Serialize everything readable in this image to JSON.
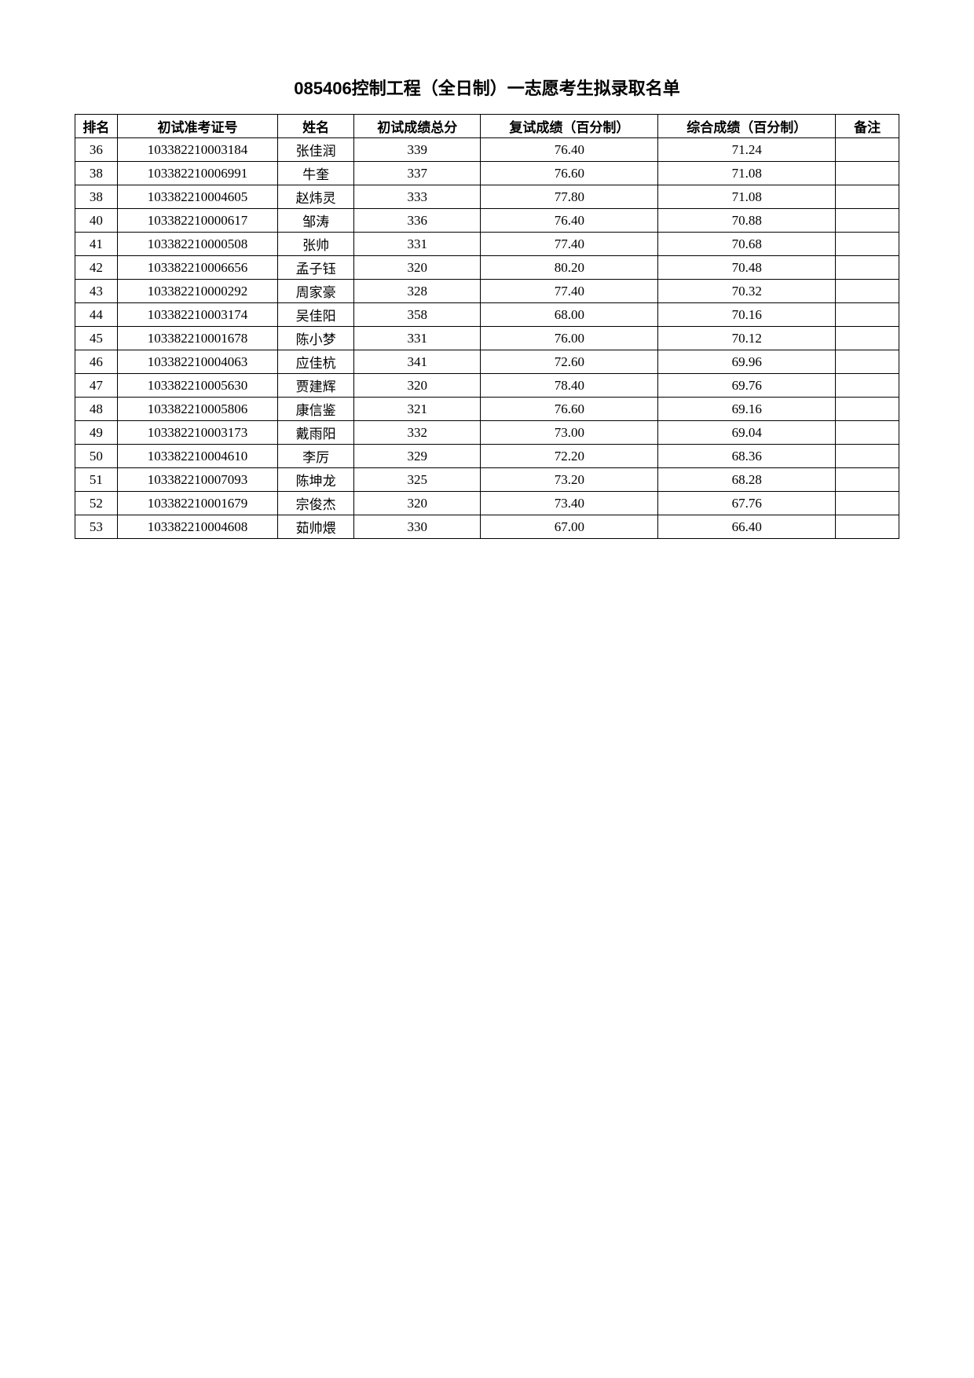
{
  "title": "085406控制工程（全日制）一志愿考生拟录取名单",
  "table": {
    "columns": [
      "排名",
      "初试准考证号",
      "姓名",
      "初试成绩总分",
      "复试成绩（百分制）",
      "综合成绩（百分制）",
      "备注"
    ],
    "rows": [
      {
        "rank": "36",
        "id": "103382210003184",
        "name": "张佳润",
        "prelim": "339",
        "retest": "76.40",
        "total": "71.24",
        "note": ""
      },
      {
        "rank": "38",
        "id": "103382210006991",
        "name": "牛奎",
        "prelim": "337",
        "retest": "76.60",
        "total": "71.08",
        "note": ""
      },
      {
        "rank": "38",
        "id": "103382210004605",
        "name": "赵炜灵",
        "prelim": "333",
        "retest": "77.80",
        "total": "71.08",
        "note": ""
      },
      {
        "rank": "40",
        "id": "103382210000617",
        "name": "邹涛",
        "prelim": "336",
        "retest": "76.40",
        "total": "70.88",
        "note": ""
      },
      {
        "rank": "41",
        "id": "103382210000508",
        "name": "张帅",
        "prelim": "331",
        "retest": "77.40",
        "total": "70.68",
        "note": ""
      },
      {
        "rank": "42",
        "id": "103382210006656",
        "name": "孟子钰",
        "prelim": "320",
        "retest": "80.20",
        "total": "70.48",
        "note": ""
      },
      {
        "rank": "43",
        "id": "103382210000292",
        "name": "周家豪",
        "prelim": "328",
        "retest": "77.40",
        "total": "70.32",
        "note": ""
      },
      {
        "rank": "44",
        "id": "103382210003174",
        "name": "吴佳阳",
        "prelim": "358",
        "retest": "68.00",
        "total": "70.16",
        "note": ""
      },
      {
        "rank": "45",
        "id": "103382210001678",
        "name": "陈小梦",
        "prelim": "331",
        "retest": "76.00",
        "total": "70.12",
        "note": ""
      },
      {
        "rank": "46",
        "id": "103382210004063",
        "name": "应佳杭",
        "prelim": "341",
        "retest": "72.60",
        "total": "69.96",
        "note": ""
      },
      {
        "rank": "47",
        "id": "103382210005630",
        "name": "贾建辉",
        "prelim": "320",
        "retest": "78.40",
        "total": "69.76",
        "note": ""
      },
      {
        "rank": "48",
        "id": "103382210005806",
        "name": "康信鉴",
        "prelim": "321",
        "retest": "76.60",
        "total": "69.16",
        "note": ""
      },
      {
        "rank": "49",
        "id": "103382210003173",
        "name": "戴雨阳",
        "prelim": "332",
        "retest": "73.00",
        "total": "69.04",
        "note": ""
      },
      {
        "rank": "50",
        "id": "103382210004610",
        "name": "李厉",
        "prelim": "329",
        "retest": "72.20",
        "total": "68.36",
        "note": ""
      },
      {
        "rank": "51",
        "id": "103382210007093",
        "name": "陈坤龙",
        "prelim": "325",
        "retest": "73.20",
        "total": "68.28",
        "note": ""
      },
      {
        "rank": "52",
        "id": "103382210001679",
        "name": "宗俊杰",
        "prelim": "320",
        "retest": "73.40",
        "total": "67.76",
        "note": ""
      },
      {
        "rank": "53",
        "id": "103382210004608",
        "name": "茹帅煨",
        "prelim": "330",
        "retest": "67.00",
        "total": "66.40",
        "note": ""
      }
    ]
  }
}
